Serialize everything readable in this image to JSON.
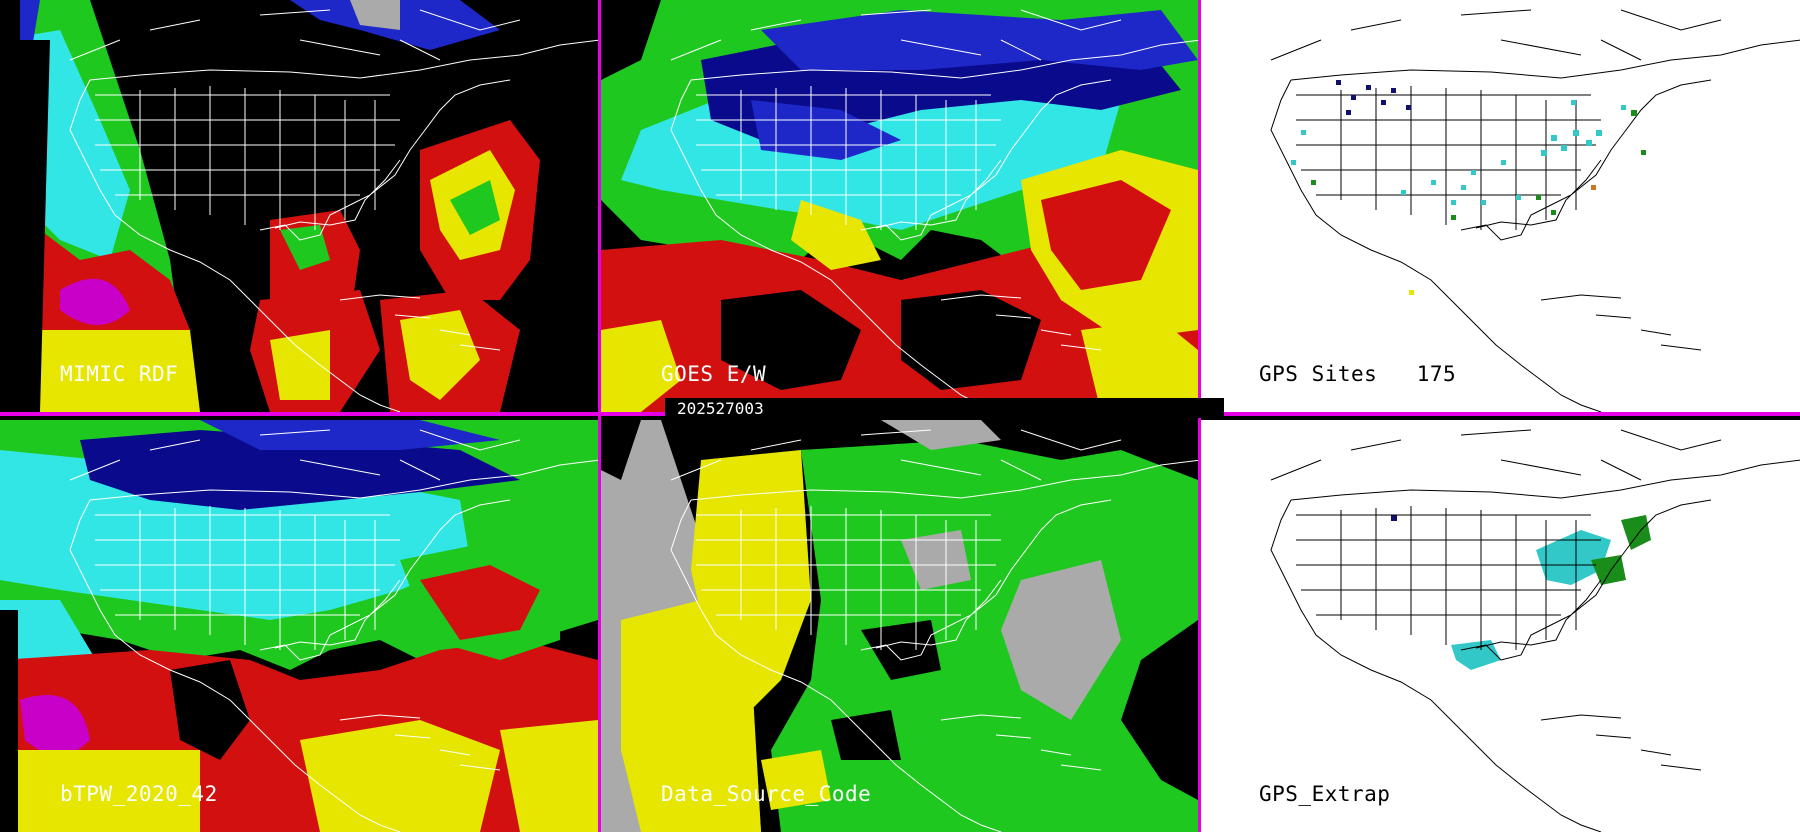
{
  "timestamp": "202527003",
  "panels": [
    {
      "id": "mimic",
      "label": "MIMIC RDF",
      "background": "#000000"
    },
    {
      "id": "goes",
      "label": "GOES E/W",
      "background": "#000000"
    },
    {
      "id": "gps-sites",
      "label": "GPS Sites",
      "count": "175",
      "background": "#ffffff"
    },
    {
      "id": "btpw",
      "label": "bTPW_2020_42",
      "background": "#000000"
    },
    {
      "id": "dsc",
      "label": "Data_Source_Code",
      "background": "#000000"
    },
    {
      "id": "gps-extrap",
      "label": "GPS_Extrap",
      "background": "#ffffff"
    }
  ],
  "colors": {
    "separator": "#e600e6",
    "dark_blue": "#0a0a8c",
    "blue": "#1e28c8",
    "cyan": "#33e6e6",
    "green": "#1fc81f",
    "yellow": "#e6e600",
    "red": "#d21010",
    "magenta": "#c800c8",
    "gray": "#aaaaaa",
    "border_white": "#ffffff",
    "border_black": "#000000"
  }
}
